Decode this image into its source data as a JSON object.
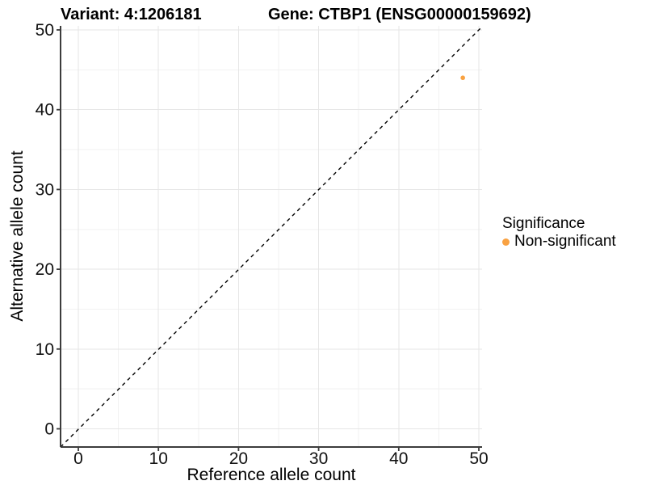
{
  "chart_data": {
    "type": "scatter",
    "title_left": "Variant: 4:1206181",
    "title_right": "Gene: CTBP1 (ENSG00000159692)",
    "xlabel": "Reference allele count",
    "ylabel": "Alternative allele count",
    "xlim": [
      -2.2,
      50.4
    ],
    "ylim": [
      -2.3,
      50.4
    ],
    "x_ticks": [
      0,
      10,
      20,
      30,
      40,
      50
    ],
    "y_ticks": [
      0,
      10,
      20,
      30,
      40,
      50
    ],
    "minor_ticks": [
      5,
      15,
      25,
      35,
      45
    ],
    "grid": true,
    "reference_line": {
      "type": "abline",
      "slope": 1,
      "intercept": 0,
      "style": "dashed",
      "color": "#000000"
    },
    "series": [
      {
        "name": "Non-significant",
        "color": "#F9A242",
        "points": [
          {
            "x": 48,
            "y": 44
          }
        ]
      }
    ],
    "legend": {
      "title": "Significance",
      "position": "right",
      "items": [
        {
          "label": "Non-significant",
          "color": "#F9A242"
        }
      ]
    }
  },
  "colors": {
    "background": "#ffffff",
    "axis": "#3c3c3c",
    "grid_major": "#e6e6e6",
    "grid_minor": "#f2f2f2",
    "tick_text": "#111111",
    "point": "#F9A242"
  }
}
